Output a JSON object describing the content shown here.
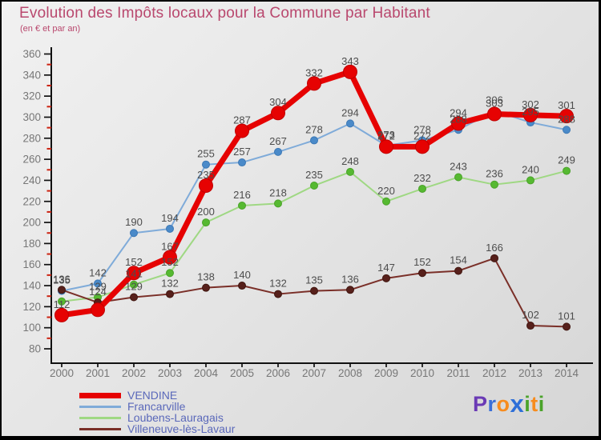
{
  "title": "Evolution des Impôts locaux pour la Commune par Habitant",
  "subtitle": "(en € et par an)",
  "colors": {
    "title": "#b9486e",
    "axis": "#111111",
    "minor_tick": "#cc2211",
    "tick_label": "#777777",
    "data_label": "#4d4d4d",
    "legend_text": "#5a68ba"
  },
  "chart_data": {
    "type": "line",
    "x": [
      2000,
      2001,
      2002,
      2003,
      2004,
      2005,
      2006,
      2007,
      2008,
      2009,
      2010,
      2011,
      2012,
      2013,
      2014
    ],
    "ylim": [
      80,
      360
    ],
    "ytick_step": 20,
    "grid": false,
    "legend_position": "bottom-left",
    "series": [
      {
        "name": "VENDINE",
        "color": "#e60202",
        "line_width": 7,
        "marker_radius": 8.5,
        "marker_fill": "#e60202",
        "marker_stroke": "#c00000",
        "values": [
          112,
          117,
          152,
          167,
          235,
          287,
          304,
          332,
          343,
          272,
          272,
          294,
          303,
          302,
          301
        ],
        "labels": [
          "112",
          "",
          "152",
          "167",
          "235",
          "287",
          "304",
          "332",
          "343",
          "272",
          "272",
          "294",
          "303",
          "302",
          "301"
        ]
      },
      {
        "name": "Francarville",
        "color": "#7fabd9",
        "line_width": 2,
        "marker_radius": 4.5,
        "marker_fill": "#4a8ac9",
        "marker_stroke": "#3c78b5",
        "values": [
          135,
          142,
          190,
          194,
          255,
          257,
          267,
          278,
          294,
          273,
          278,
          288,
          306,
          295,
          288
        ],
        "labels": [
          "135",
          "142",
          "190",
          "194",
          "255",
          "257",
          "267",
          "278",
          "294",
          "273",
          "278",
          "288",
          "306",
          "295",
          "288"
        ]
      },
      {
        "name": "Loubens-Lauragais",
        "color": "#9fd883",
        "line_width": 2,
        "marker_radius": 4.5,
        "marker_fill": "#56b931",
        "marker_stroke": "#4aa22a",
        "values": [
          125,
          129,
          141,
          152,
          200,
          216,
          218,
          235,
          248,
          220,
          232,
          243,
          236,
          240,
          249
        ],
        "labels": [
          "",
          "129",
          "141",
          "152",
          "200",
          "216",
          "218",
          "235",
          "248",
          "220",
          "232",
          "243",
          "236",
          "240",
          "249"
        ]
      },
      {
        "name": "Villeneuve-lès-Lavaur",
        "color": "#7a2f28",
        "line_width": 2,
        "marker_radius": 4.5,
        "marker_fill": "#57201b",
        "marker_stroke": "#40150f",
        "values": [
          136,
          124,
          129,
          132,
          138,
          140,
          132,
          135,
          136,
          147,
          152,
          154,
          166,
          102,
          101
        ],
        "labels": [
          "136",
          "124",
          "129",
          "132",
          "138",
          "140",
          "132",
          "135",
          "136",
          "147",
          "152",
          "154",
          "166",
          "102",
          "101"
        ]
      }
    ]
  },
  "logo": {
    "text": "Proxiti",
    "letters": [
      {
        "ch": "P",
        "color": "#6a3ab5"
      },
      {
        "ch": "r",
        "color": "#3a6fd8"
      },
      {
        "ch": "o",
        "color": "#f78c1e"
      },
      {
        "ch": "x",
        "color": "#2e6fd8"
      },
      {
        "ch": "i",
        "color": "#4aa32a"
      },
      {
        "ch": "t",
        "color": "#f78c1e"
      },
      {
        "ch": "i",
        "color": "#4aa32a"
      }
    ]
  }
}
